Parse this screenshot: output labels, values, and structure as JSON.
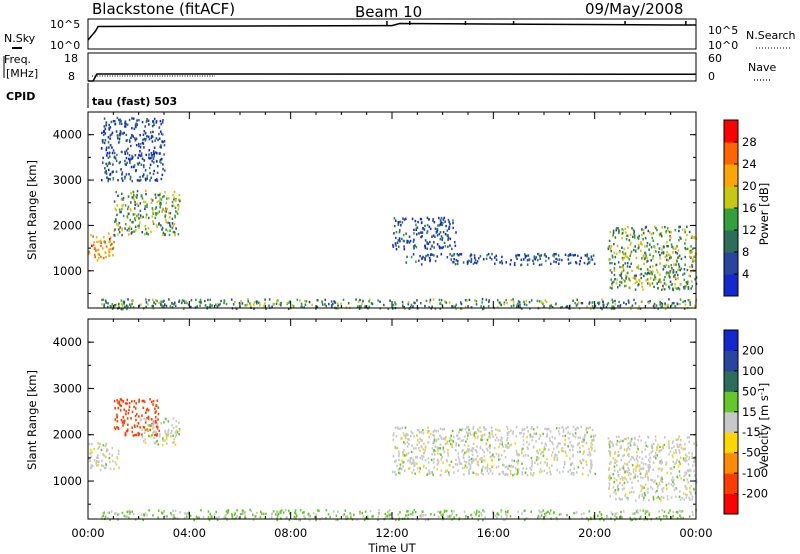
{
  "header": {
    "radar": "Blackstone (fitACF)",
    "beam": "Beam 10",
    "date": "09/May/2008"
  },
  "param_panels": {
    "nsky_label": "N.Sky",
    "nsearch_label": "N.Search",
    "noise_ticks": [
      "10^5",
      "10^0"
    ],
    "freq_label": "Freq.",
    "freq_unit": "[MHz]",
    "freq_ticks": [
      "18",
      "8"
    ],
    "nave_label": "Nave",
    "nave_ticks": [
      "60",
      "0"
    ],
    "cpid_label": "CPID",
    "cpid_value": "tau (fast) 503"
  },
  "colors": {
    "power_scale": [
      "#1428d2",
      "#2845a0",
      "#2d6e5a",
      "#32a03c",
      "#c8c814",
      "#ffa500",
      "#ff6400",
      "#ff0000"
    ],
    "velocity_scale": [
      "#ff0000",
      "#ff3c00",
      "#ff8c00",
      "#ffd700",
      "#c8c8c8",
      "#64c828",
      "#2d6e5a",
      "#2845a0",
      "#1428d2"
    ],
    "series_line": "#000000"
  },
  "chart_data": [
    {
      "type": "heatmap",
      "name": "power",
      "ylabel": "Slant Range [km]",
      "xlabel": "",
      "ylim": [
        180,
        4500
      ],
      "yticks": [
        "1000",
        "2000",
        "3000",
        "4000"
      ],
      "x_range_hours": [
        0,
        24
      ],
      "colorbar": {
        "label": "Power [dB]",
        "range": [
          0,
          32
        ],
        "ticks": [
          "4",
          "8",
          "12",
          "16",
          "20",
          "24",
          "28"
        ]
      },
      "scatter_regions": [
        {
          "t0": 0.0,
          "t1": 1.0,
          "r0": 1250,
          "r1": 1850,
          "mean_db": 22
        },
        {
          "t0": 1.0,
          "t1": 3.6,
          "r0": 1800,
          "r1": 2800,
          "mean_db": 14
        },
        {
          "t0": 0.5,
          "t1": 3.0,
          "r0": 3000,
          "r1": 4400,
          "mean_db": 6
        },
        {
          "t0": 12.0,
          "t1": 14.5,
          "r0": 1500,
          "r1": 2200,
          "mean_db": 6
        },
        {
          "t0": 12.5,
          "t1": 20.0,
          "r0": 1150,
          "r1": 1400,
          "mean_db": 6
        },
        {
          "t0": 20.5,
          "t1": 24.0,
          "r0": 600,
          "r1": 2000,
          "mean_db": 14
        },
        {
          "t0": 0.5,
          "t1": 24.0,
          "r0": 180,
          "r1": 400,
          "mean_db": 12
        }
      ]
    },
    {
      "type": "heatmap",
      "name": "velocity",
      "ylabel": "Slant Range [km]",
      "xlabel": "Time UT",
      "ylim": [
        180,
        4500
      ],
      "yticks": [
        "1000",
        "2000",
        "3000",
        "4000"
      ],
      "x_range_hours": [
        0,
        24
      ],
      "xticks": [
        "00:00",
        "04:00",
        "08:00",
        "12:00",
        "16:00",
        "20:00",
        "00:00"
      ],
      "colorbar": {
        "label": "Velocity [m s^-1]",
        "ticks": [
          "200",
          "100",
          "50",
          "15",
          "-15",
          "-50",
          "-100",
          "-200"
        ]
      },
      "scatter_regions": [
        {
          "t0": 0.0,
          "t1": 1.2,
          "r0": 1250,
          "r1": 1850,
          "mean_v": 0
        },
        {
          "t0": 1.0,
          "t1": 2.8,
          "r0": 2000,
          "r1": 2800,
          "mean_v": -150
        },
        {
          "t0": 2.0,
          "t1": 3.6,
          "r0": 1800,
          "r1": 2400,
          "mean_v": 0
        },
        {
          "t0": 12.0,
          "t1": 20.0,
          "r0": 1150,
          "r1": 2200,
          "mean_v": 0
        },
        {
          "t0": 20.5,
          "t1": 24.0,
          "r0": 600,
          "r1": 2000,
          "mean_v": 0
        },
        {
          "t0": 0.5,
          "t1": 24.0,
          "r0": 180,
          "r1": 400,
          "mean_v": 20
        }
      ]
    },
    {
      "type": "line",
      "name": "noise",
      "series": [
        {
          "x": [
            0,
            0.3,
            0.4,
            12,
            12.3,
            23,
            24
          ],
          "y": [
            0.3,
            0.6,
            0.75,
            0.78,
            0.85,
            0.8,
            0.8
          ]
        }
      ]
    },
    {
      "type": "line",
      "name": "frequency",
      "series": [
        {
          "x": [
            0,
            0.2,
            0.35,
            5,
            24
          ],
          "y": [
            8,
            8,
            10.5,
            10.5,
            10.4
          ]
        }
      ]
    }
  ]
}
